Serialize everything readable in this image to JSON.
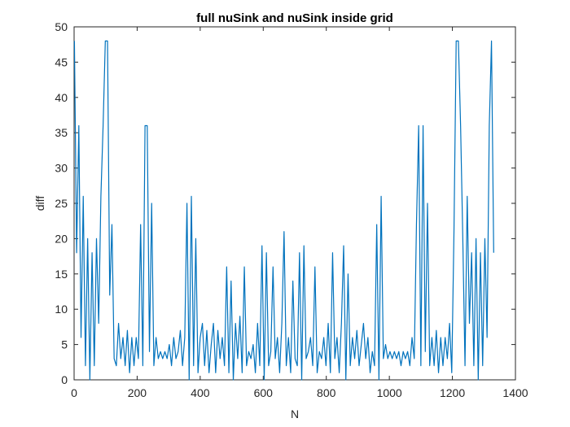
{
  "chart_data": {
    "type": "line",
    "title": "full nuSink and nuSink inside grid",
    "xlabel": "N",
    "ylabel": "diff",
    "xlim": [
      0,
      1400
    ],
    "xticks": [
      0,
      200,
      400,
      600,
      800,
      1000,
      1200,
      1400
    ],
    "ylim": [
      0,
      50
    ],
    "yticks": [
      0,
      5,
      10,
      15,
      20,
      25,
      30,
      35,
      40,
      45,
      50
    ],
    "grid": false,
    "x": [
      1,
      8,
      15,
      22,
      29,
      36,
      43,
      50,
      57,
      64,
      71,
      78,
      85,
      92,
      99,
      106,
      113,
      120,
      127,
      134,
      141,
      148,
      155,
      162,
      169,
      176,
      183,
      190,
      197,
      204,
      211,
      218,
      225,
      232,
      239,
      246,
      253,
      260,
      267,
      274,
      281,
      288,
      295,
      302,
      309,
      316,
      323,
      330,
      337,
      344,
      351,
      358,
      365,
      372,
      379,
      386,
      393,
      400,
      407,
      414,
      421,
      428,
      435,
      442,
      449,
      456,
      463,
      470,
      477,
      484,
      491,
      498,
      505,
      512,
      519,
      526,
      533,
      540,
      547,
      554,
      561,
      568,
      575,
      582,
      589,
      596,
      603,
      610,
      617,
      624,
      631,
      638,
      645,
      652,
      659,
      666,
      673,
      680,
      687,
      694,
      701,
      708,
      715,
      722,
      729,
      736,
      743,
      750,
      757,
      764,
      771,
      778,
      785,
      792,
      799,
      806,
      813,
      820,
      827,
      834,
      841,
      848,
      855,
      862,
      869,
      876,
      883,
      890,
      897,
      904,
      911,
      918,
      925,
      932,
      939,
      946,
      953,
      960,
      967,
      974,
      981,
      988,
      995,
      1002,
      1009,
      1016,
      1023,
      1030,
      1037,
      1044,
      1051,
      1058,
      1065,
      1072,
      1079,
      1086,
      1093,
      1100,
      1107,
      1114,
      1121,
      1128,
      1135,
      1142,
      1149,
      1156,
      1163,
      1170,
      1177,
      1184,
      1191,
      1198,
      1205,
      1212,
      1219,
      1226,
      1233,
      1240,
      1247,
      1254,
      1261,
      1268,
      1275,
      1282,
      1289,
      1296,
      1303,
      1310,
      1317,
      1324,
      1331
    ],
    "series": [
      {
        "color": "#0072bd",
        "values": [
          48,
          18,
          36,
          6,
          26,
          2,
          20,
          0,
          18,
          2,
          20,
          8,
          26,
          36,
          48,
          48,
          12,
          22,
          3,
          2,
          8,
          3,
          6,
          2,
          7,
          1,
          6,
          2,
          6,
          3,
          22,
          2,
          36,
          36,
          4,
          25,
          2,
          6,
          3,
          4,
          3,
          4,
          3,
          5,
          2,
          6,
          3,
          4,
          7,
          2,
          6,
          25,
          0,
          26,
          2,
          20,
          1,
          6,
          8,
          2,
          7,
          1,
          5,
          8,
          1,
          7,
          3,
          6,
          2,
          16,
          1,
          14,
          0,
          8,
          3,
          9,
          1,
          16,
          2,
          4,
          3,
          5,
          1,
          8,
          2,
          19,
          0,
          18,
          2,
          4,
          16,
          3,
          6,
          1,
          8,
          21,
          2,
          6,
          1,
          14,
          3,
          2,
          18,
          0,
          19,
          3,
          4,
          6,
          2,
          16,
          1,
          4,
          3,
          6,
          2,
          8,
          1,
          18,
          3,
          6,
          1,
          8,
          19,
          0,
          15,
          2,
          6,
          3,
          7,
          2,
          5,
          8,
          3,
          6,
          1,
          4,
          2,
          22,
          0,
          26,
          3,
          5,
          3,
          4,
          3,
          4,
          3,
          4,
          2,
          4,
          3,
          4,
          2,
          6,
          3,
          22,
          36,
          2,
          36,
          4,
          25,
          2,
          6,
          2,
          7,
          1,
          6,
          2,
          6,
          3,
          8,
          1,
          21,
          48,
          48,
          36,
          20,
          2,
          26,
          8,
          18,
          2,
          20,
          0,
          18,
          2,
          20,
          6,
          36,
          48,
          18
        ]
      }
    ]
  }
}
